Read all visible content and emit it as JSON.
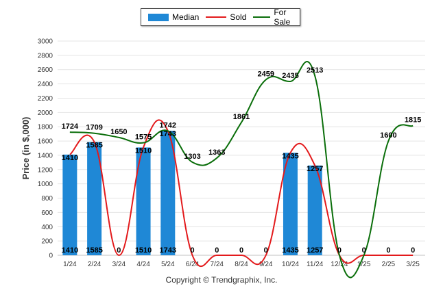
{
  "chart_data": {
    "type": "bar",
    "ylabel": "Price (in $,000)",
    "ylim": [
      0,
      3000
    ],
    "yticks": [
      0,
      200,
      400,
      600,
      800,
      1000,
      1200,
      1400,
      1600,
      1800,
      2000,
      2200,
      2400,
      2600,
      2800,
      3000
    ],
    "grid": true,
    "legend_position": "top-center",
    "categories": [
      "1/24",
      "2/24",
      "3/24",
      "4/24",
      "5/24",
      "6/24",
      "7/24",
      "8/24",
      "9/24",
      "10/24",
      "11/24",
      "12/24",
      "1/25",
      "2/25",
      "3/25"
    ],
    "series": [
      {
        "name": "Median",
        "type": "bar",
        "color": "#1f88d6",
        "values": [
          1410,
          1585,
          0,
          1510,
          1743,
          0,
          0,
          0,
          0,
          1435,
          1257,
          0,
          0,
          0,
          0
        ]
      },
      {
        "name": "Sold",
        "type": "line",
        "color": "#e31a1c",
        "values": [
          1410,
          1585,
          0,
          1510,
          1743,
          0,
          0,
          0,
          0,
          1435,
          1257,
          0,
          0,
          0,
          0
        ]
      },
      {
        "name": "For Sale",
        "type": "line",
        "color": "#0a6e0a",
        "values": [
          1724,
          1709,
          1650,
          1575,
          1742,
          1303,
          1363,
          1861,
          2459,
          2435,
          2513,
          0,
          0,
          1600,
          1815
        ]
      }
    ]
  },
  "footer": "Copyright © Trendgraphix, Inc."
}
